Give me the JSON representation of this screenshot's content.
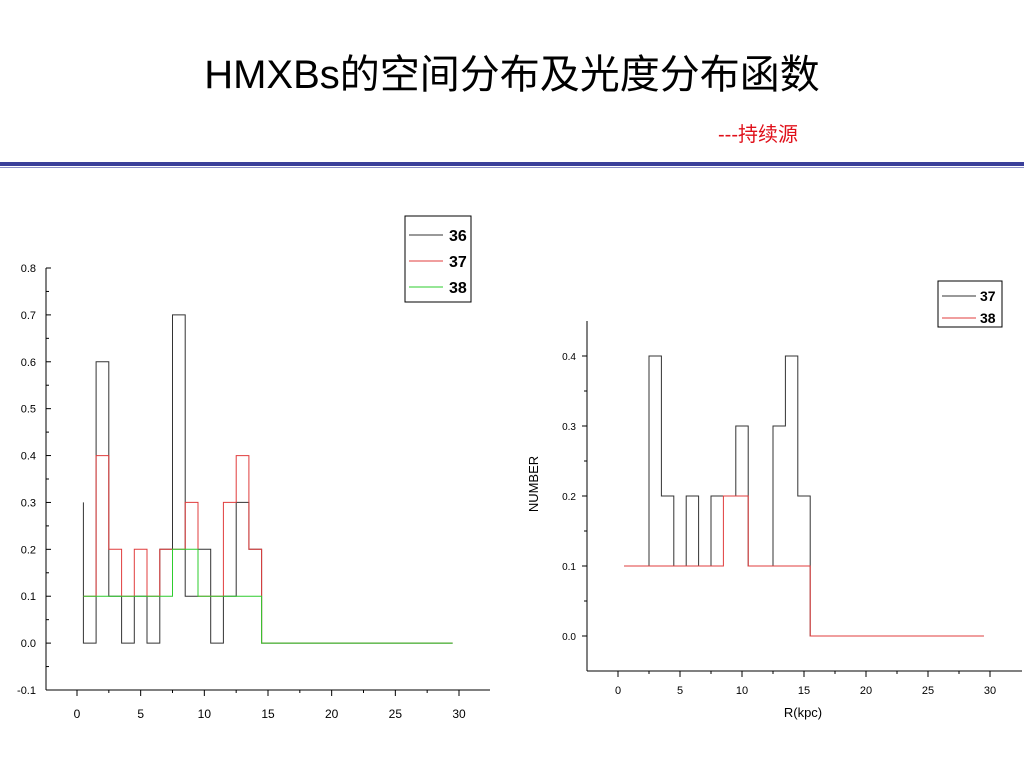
{
  "slide": {
    "title": "HMXBs的空间分布及光度分布函数",
    "subtitle": "---持续源",
    "subtitle_color": "#e0101a",
    "rule_color": "#3a3f9a"
  },
  "chart_data": [
    {
      "type": "line",
      "step": true,
      "title": "",
      "xlabel": "",
      "ylabel": "",
      "xlim": [
        -1,
        31
      ],
      "ylim": [
        -0.1,
        0.8
      ],
      "x_ticks": [
        0,
        5,
        10,
        15,
        20,
        25,
        30
      ],
      "x_tick_labels": [
        "0",
        "5",
        "10",
        "15",
        "20",
        "25",
        "30"
      ],
      "y_ticks": [
        -0.1,
        0.0,
        0.1,
        0.2,
        0.3,
        0.4,
        0.5,
        0.6,
        0.7,
        0.8
      ],
      "y_tick_labels": [
        "-0.1",
        "0.0",
        "0.1",
        "0.2",
        "0.3",
        "0.4",
        "0.5",
        "0.6",
        "0.7",
        "0.8"
      ],
      "bin_edges": [
        0.5,
        1.5,
        2.5,
        3.5,
        4.5,
        5.5,
        6.5,
        7.5,
        8.5,
        9.5,
        10.5,
        11.5,
        12.5,
        13.5,
        14.5,
        15.5,
        16.5,
        17.5,
        18.5,
        19.5,
        20.5,
        21.5,
        22.5,
        23.5,
        24.5,
        25.5,
        26.5,
        27.5,
        28.5,
        29.5
      ],
      "series": [
        {
          "name": "36",
          "color": "#333333",
          "start_value": 0.3,
          "values": [
            0,
            0.6,
            0.1,
            0,
            0.1,
            0,
            0.2,
            0.7,
            0.1,
            0.2,
            0,
            0.1,
            0.3,
            0.2,
            0,
            0,
            0,
            0,
            0,
            0,
            0,
            0,
            0,
            0,
            0,
            0,
            0,
            0,
            0
          ]
        },
        {
          "name": "37",
          "color": "#e03c3c",
          "values": [
            0.1,
            0.4,
            0.2,
            0.1,
            0.2,
            0.1,
            0.2,
            0.2,
            0.3,
            0.1,
            0.1,
            0.3,
            0.4,
            0.2,
            0,
            0,
            0,
            0,
            0,
            0,
            0,
            0,
            0,
            0,
            0,
            0,
            0,
            0,
            0
          ]
        },
        {
          "name": "38",
          "color": "#2ecc2e",
          "values": [
            0.1,
            0.1,
            0.1,
            0.1,
            0.1,
            0.1,
            0.1,
            0.2,
            0.2,
            0.1,
            0.1,
            0.1,
            0.1,
            0.1,
            0,
            0,
            0,
            0,
            0,
            0,
            0,
            0,
            0,
            0,
            0,
            0,
            0,
            0,
            0
          ]
        }
      ],
      "legend": {
        "position": "top-right",
        "entries": [
          "36",
          "37",
          "38"
        ]
      },
      "grid": false
    },
    {
      "type": "line",
      "step": true,
      "title": "",
      "xlabel": "R(kpc)",
      "ylabel": "NUMBER",
      "xlim": [
        -1,
        31
      ],
      "ylim": [
        -0.05,
        0.45
      ],
      "x_ticks": [
        0,
        5,
        10,
        15,
        20,
        25,
        30
      ],
      "x_tick_labels": [
        "0",
        "5",
        "10",
        "15",
        "20",
        "25",
        "30"
      ],
      "y_ticks": [
        0.0,
        0.1,
        0.2,
        0.3,
        0.4
      ],
      "y_tick_labels": [
        "0.0",
        "0.1",
        "0.2",
        "0.3",
        "0.4"
      ],
      "bin_edges": [
        0.5,
        1.5,
        2.5,
        3.5,
        4.5,
        5.5,
        6.5,
        7.5,
        8.5,
        9.5,
        10.5,
        11.5,
        12.5,
        13.5,
        14.5,
        15.5,
        16.5,
        17.5,
        18.5,
        19.5,
        20.5,
        21.5,
        22.5,
        23.5,
        24.5,
        25.5,
        26.5,
        27.5,
        28.5,
        29.5
      ],
      "series": [
        {
          "name": "37",
          "color": "#333333",
          "values": [
            0.1,
            0.1,
            0.4,
            0.2,
            0.1,
            0.2,
            0.1,
            0.2,
            0.2,
            0.3,
            0.1,
            0.1,
            0.3,
            0.4,
            0.2,
            0,
            0,
            0,
            0,
            0,
            0,
            0,
            0,
            0,
            0,
            0,
            0,
            0,
            0
          ]
        },
        {
          "name": "38",
          "color": "#e03c3c",
          "values": [
            0.1,
            0.1,
            0.1,
            0.1,
            0.1,
            0.1,
            0.1,
            0.1,
            0.2,
            0.2,
            0.1,
            0.1,
            0.1,
            0.1,
            0.1,
            0,
            0,
            0,
            0,
            0,
            0,
            0,
            0,
            0,
            0,
            0,
            0,
            0,
            0
          ]
        }
      ],
      "legend": {
        "position": "top-right",
        "entries": [
          "37",
          "38"
        ]
      },
      "grid": false
    }
  ]
}
